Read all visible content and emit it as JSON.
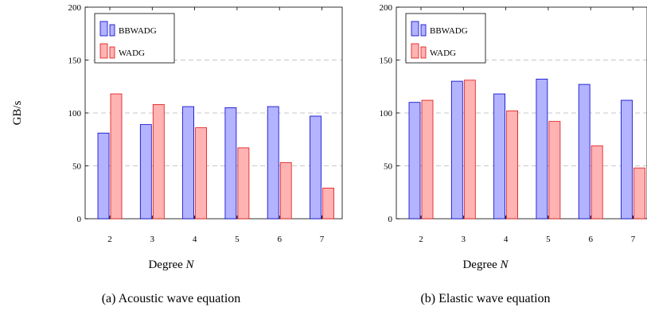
{
  "ylabel": "GB/s",
  "chart_data": [
    {
      "type": "bar",
      "xlabel": "Degree",
      "xlabel_var": "N",
      "caption": "(a) Acoustic wave equation",
      "categories": [
        "2",
        "3",
        "4",
        "5",
        "6",
        "7"
      ],
      "ylim": [
        0,
        200
      ],
      "yticks": [
        "0",
        "50",
        "100",
        "150",
        "200"
      ],
      "grid": "horizontal dashed",
      "legend_position": "top-left",
      "series": [
        {
          "name": "BBWADG",
          "values": [
            81,
            89,
            106,
            105,
            106,
            97
          ],
          "fill": "#b3b3ff",
          "stroke": "#0000cc"
        },
        {
          "name": "WADG",
          "values": [
            118,
            108,
            86,
            67,
            53,
            29
          ],
          "fill": "#ffb3b3",
          "stroke": "#e01010"
        }
      ]
    },
    {
      "type": "bar",
      "xlabel": "Degree",
      "xlabel_var": "N",
      "caption": "(b) Elastic wave equation",
      "categories": [
        "2",
        "3",
        "4",
        "5",
        "6",
        "7"
      ],
      "ylim": [
        0,
        200
      ],
      "yticks": [
        "0",
        "50",
        "100",
        "150",
        "200"
      ],
      "grid": "horizontal dashed",
      "legend_position": "top-left",
      "series": [
        {
          "name": "BBWADG",
          "values": [
            110,
            130,
            118,
            132,
            127,
            112
          ],
          "fill": "#b3b3ff",
          "stroke": "#0000cc"
        },
        {
          "name": "WADG",
          "values": [
            112,
            131,
            102,
            92,
            69,
            48
          ],
          "fill": "#ffb3b3",
          "stroke": "#e01010"
        }
      ]
    }
  ]
}
